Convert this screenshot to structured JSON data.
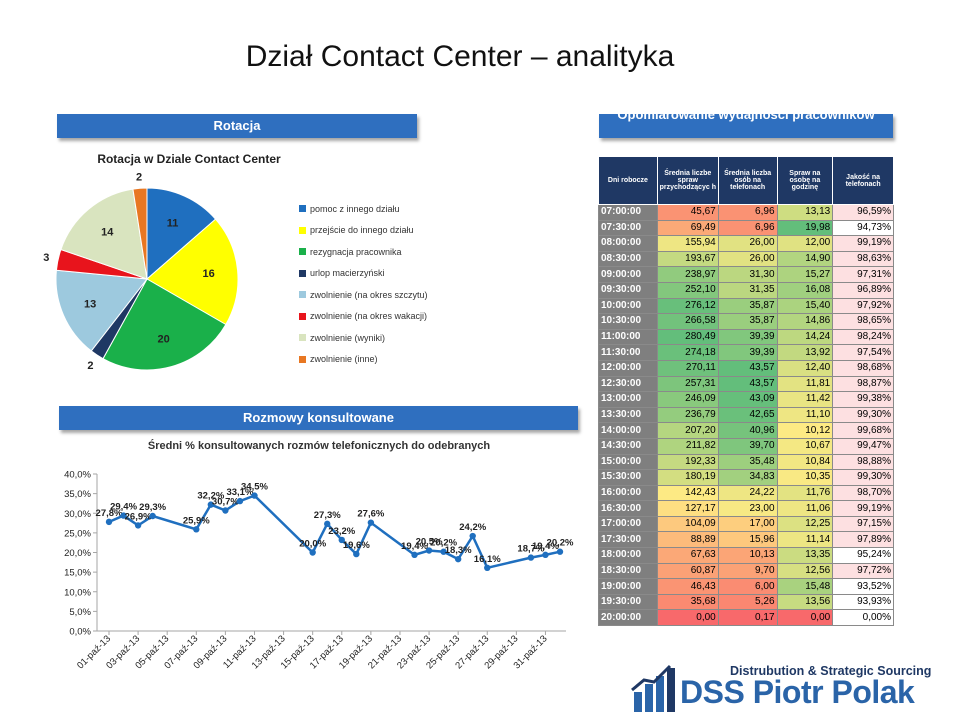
{
  "page": {
    "title": "Dział Contact Center – analityka"
  },
  "banners": {
    "rotacja": "Rotacja",
    "rozmowy": "Rozmowy konsultowane",
    "opomiarowanie": "Opomiarowanie wydajności pracowników"
  },
  "logo": {
    "tagline": "Distrubution & Strategic Sourcing",
    "name": "DSS Piotr Polak",
    "icon": "bar-chart-logo-icon"
  },
  "chart_data": [
    {
      "type": "pie",
      "title": "Rotacja w Dziale Contact Center",
      "categories": [
        "pomoc  z innego działu",
        "przejście do innego działu",
        "rezygnacja pracownika",
        "urlop macierzyński",
        "zwolnienie (na okres szczytu)",
        "zwolnienie (na okres wakacji)",
        "zwolnienie (wyniki)",
        "zwolnienie (inne)"
      ],
      "values": [
        11,
        16,
        20,
        2,
        13,
        3,
        14,
        2
      ],
      "colors": [
        "#1f6fbf",
        "#ffff00",
        "#1ab04a",
        "#1f3864",
        "#9dc9de",
        "#e8141c",
        "#d9e4bf",
        "#e87722"
      ],
      "legend_position": "right"
    },
    {
      "type": "line",
      "title": "Średni % konsultowanych  rozmów telefonicznych do odebranych",
      "categories": [
        "01-paź-13",
        "03-paź-13",
        "05-paź-13",
        "07-paź-13",
        "09-paź-13",
        "11-paź-13",
        "13-paź-13",
        "15-paź-13",
        "17-paź-13",
        "19-paź-13",
        "21-paź-13",
        "23-paź-13",
        "25-paź-13",
        "27-paź-13",
        "29-paź-13",
        "31-paź-13"
      ],
      "x_min": 1,
      "x_max": 32,
      "x": [
        1,
        2,
        3,
        4,
        7,
        8,
        9,
        10,
        11,
        15,
        16,
        17,
        18,
        19,
        22,
        23,
        24,
        25,
        26,
        27,
        30,
        31,
        32
      ],
      "values": [
        27.8,
        29.4,
        26.9,
        29.3,
        25.9,
        32.2,
        30.7,
        33.1,
        34.5,
        20.0,
        27.3,
        23.2,
        19.6,
        27.6,
        19.4,
        20.5,
        20.2,
        18.3,
        24.2,
        16.1,
        18.7,
        19.4,
        20.2
      ],
      "labels": [
        "27,8%",
        "29,4%",
        "26,9%",
        "29,3%",
        "25,9%",
        "32,2%",
        "30,7%",
        "33,1%",
        "34,5%",
        "20,0%",
        "27,3%",
        "23,2%",
        "19,6%",
        "27,6%",
        "19,4%",
        "20,5%",
        "20,2%",
        "18,3%",
        "24,2%",
        "16,1%",
        "18,7%",
        "19,4%",
        "20,2%"
      ],
      "yticks": [
        "0,0%",
        "5,0%",
        "10,0%",
        "15,0%",
        "20,0%",
        "25,0%",
        "30,0%",
        "35,0%",
        "40,0%"
      ],
      "ylim": [
        0,
        40
      ],
      "color": "#1f6fbf",
      "grid": false
    }
  ],
  "table": {
    "headers": [
      "Dni robocze",
      "Średnia liczbe spraw przychodzącyc h",
      "Średnia liczba osób na telefonach",
      "Spraw na osobę na godzinę",
      "Jakość na telefonach"
    ],
    "rows": [
      [
        "07:00:00",
        "45,67",
        "6,96",
        "13,13",
        "96,59%"
      ],
      [
        "07:30:00",
        "69,49",
        "6,96",
        "19,98",
        "94,73%"
      ],
      [
        "08:00:00",
        "155,94",
        "26,00",
        "12,00",
        "99,19%"
      ],
      [
        "08:30:00",
        "193,67",
        "26,00",
        "14,90",
        "98,63%"
      ],
      [
        "09:00:00",
        "238,97",
        "31,30",
        "15,27",
        "97,31%"
      ],
      [
        "09:30:00",
        "252,10",
        "31,35",
        "16,08",
        "96,89%"
      ],
      [
        "10:00:00",
        "276,12",
        "35,87",
        "15,40",
        "97,92%"
      ],
      [
        "10:30:00",
        "266,58",
        "35,87",
        "14,86",
        "98,65%"
      ],
      [
        "11:00:00",
        "280,49",
        "39,39",
        "14,24",
        "98,24%"
      ],
      [
        "11:30:00",
        "274,18",
        "39,39",
        "13,92",
        "97,54%"
      ],
      [
        "12:00:00",
        "270,11",
        "43,57",
        "12,40",
        "98,68%"
      ],
      [
        "12:30:00",
        "257,31",
        "43,57",
        "11,81",
        "98,87%"
      ],
      [
        "13:00:00",
        "246,09",
        "43,09",
        "11,42",
        "99,38%"
      ],
      [
        "13:30:00",
        "236,79",
        "42,65",
        "11,10",
        "99,30%"
      ],
      [
        "14:00:00",
        "207,20",
        "40,96",
        "10,12",
        "99,68%"
      ],
      [
        "14:30:00",
        "211,82",
        "39,70",
        "10,67",
        "99,47%"
      ],
      [
        "15:00:00",
        "192,33",
        "35,48",
        "10,84",
        "98,88%"
      ],
      [
        "15:30:00",
        "180,19",
        "34,83",
        "10,35",
        "99,30%"
      ],
      [
        "16:00:00",
        "142,43",
        "24,22",
        "11,76",
        "98,70%"
      ],
      [
        "16:30:00",
        "127,17",
        "23,00",
        "11,06",
        "99,19%"
      ],
      [
        "17:00:00",
        "104,09",
        "17,00",
        "12,25",
        "97,15%"
      ],
      [
        "17:30:00",
        "88,89",
        "15,96",
        "11,14",
        "97,89%"
      ],
      [
        "18:00:00",
        "67,63",
        "10,13",
        "13,35",
        "95,24%"
      ],
      [
        "18:30:00",
        "60,87",
        "9,70",
        "12,56",
        "97,72%"
      ],
      [
        "19:00:00",
        "46,43",
        "6,00",
        "15,48",
        "93,52%"
      ],
      [
        "19:30:00",
        "35,68",
        "5,26",
        "13,56",
        "93,93%"
      ],
      [
        "20:00:00",
        "0,00",
        "0,17",
        "0,00",
        "0,00%"
      ]
    ],
    "colors": {
      "red": "#f8696b",
      "yellow": "#ffeb84",
      "green": "#63be7b",
      "quality_pink": "#fde0e1",
      "time_bg": "#7f7f7f"
    }
  }
}
